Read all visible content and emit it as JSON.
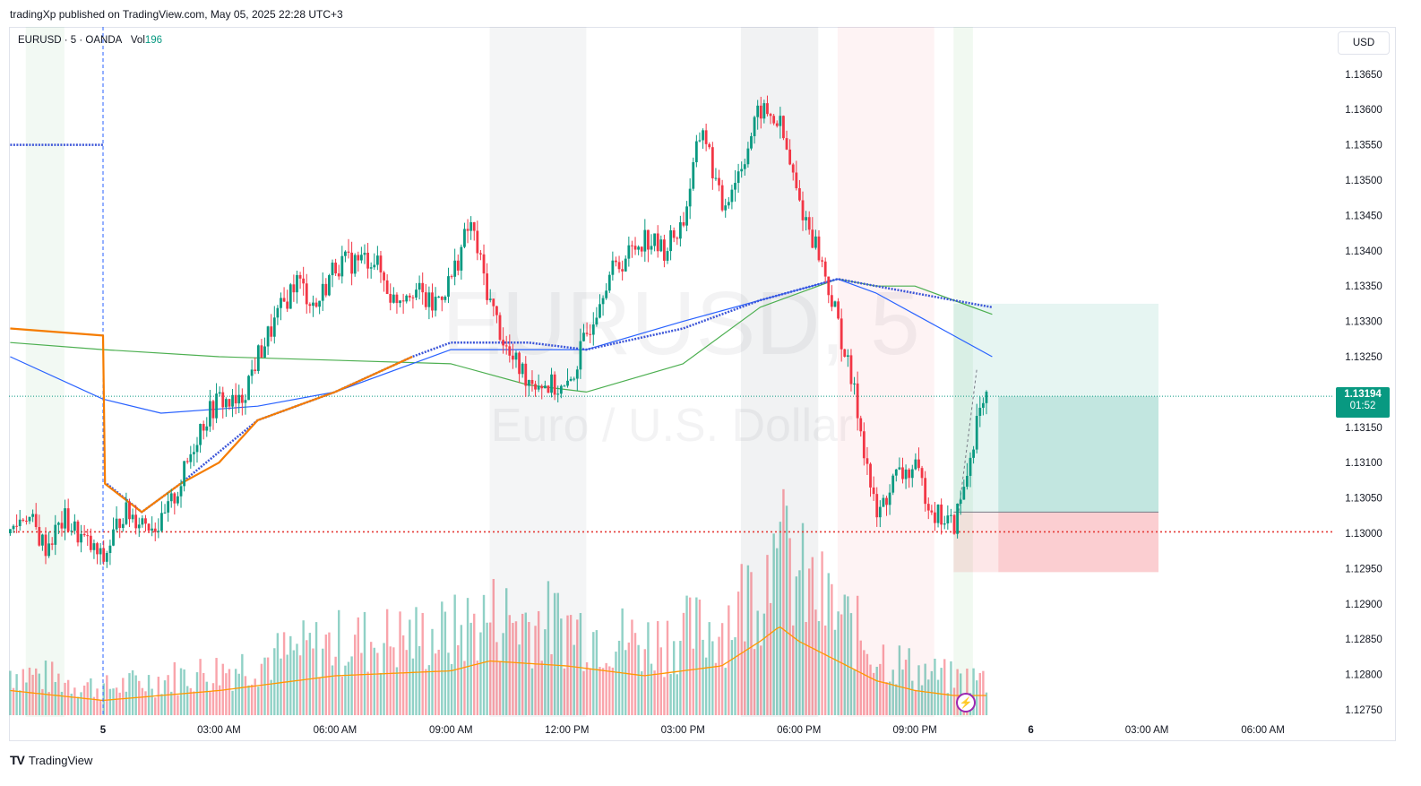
{
  "header": {
    "published": "tradingXp published on TradingView.com, May 05, 2025 22:28 UTC+3"
  },
  "legend": {
    "symbol": "EURUSD · 5 · OANDA",
    "vol_label": "Vol",
    "vol_value": "196"
  },
  "currency_button": "USD",
  "last_price": {
    "price": "1.13194",
    "countdown": "01:52"
  },
  "watermark": {
    "symbol": "EURUSD, 5",
    "description": "Euro / U.S. Dollar"
  },
  "brand": {
    "logo": "TV",
    "name": "TradingView"
  },
  "colors": {
    "up": "#089981",
    "down": "#f23645",
    "sma_long": "#4caf50",
    "sma_mid": "#2962ff",
    "sma_dotted": "#3c55d8",
    "vwap": "#f57c00",
    "volume_ma": "#ff9800",
    "last_price": "#089981",
    "level_line": "#e53935"
  },
  "chart_data": {
    "type": "candlestick",
    "symbol": "EURUSD",
    "timeframe": "5",
    "y_ticks": [
      "1.13650",
      "1.13600",
      "1.13550",
      "1.13500",
      "1.13450",
      "1.13400",
      "1.13350",
      "1.13300",
      "1.13250",
      "1.13150",
      "1.13100",
      "1.13050",
      "1.13000",
      "1.12950",
      "1.12900",
      "1.12850",
      "1.12800",
      "1.12750"
    ],
    "ylim": [
      1.1275,
      1.1365
    ],
    "x_ticks": [
      "5",
      "03:00 AM",
      "06:00 AM",
      "09:00 AM",
      "12:00 PM",
      "03:00 PM",
      "06:00 PM",
      "09:00 PM",
      "6",
      "03:00 AM",
      "06:00 AM"
    ],
    "x_tick_hours": [
      0,
      3,
      6,
      9,
      12,
      15,
      18,
      21,
      24,
      27,
      30
    ],
    "x_window_hours": [
      -2.4,
      33.8
    ],
    "price_anchors": [
      [
        -2.4,
        1.13
      ],
      [
        -2.0,
        1.1303
      ],
      [
        -1.5,
        1.1298
      ],
      [
        -1.0,
        1.1302
      ],
      [
        -0.5,
        1.1299
      ],
      [
        0.0,
        1.1296
      ],
      [
        0.5,
        1.1303
      ],
      [
        1.0,
        1.1302
      ],
      [
        1.5,
        1.1301
      ],
      [
        2.0,
        1.1307
      ],
      [
        2.5,
        1.1315
      ],
      [
        3.0,
        1.1319
      ],
      [
        3.5,
        1.1318
      ],
      [
        4.0,
        1.1325
      ],
      [
        5.0,
        1.1336
      ],
      [
        5.5,
        1.1332
      ],
      [
        6.0,
        1.1338
      ],
      [
        7.0,
        1.1339
      ],
      [
        7.5,
        1.1333
      ],
      [
        8.0,
        1.1335
      ],
      [
        8.5,
        1.1332
      ],
      [
        9.0,
        1.1336
      ],
      [
        9.5,
        1.1344
      ],
      [
        10.0,
        1.1333
      ],
      [
        10.5,
        1.1325
      ],
      [
        11.0,
        1.1322
      ],
      [
        12.0,
        1.132
      ],
      [
        12.5,
        1.1328
      ],
      [
        13.0,
        1.1336
      ],
      [
        14.0,
        1.1342
      ],
      [
        14.5,
        1.134
      ],
      [
        15.0,
        1.1344
      ],
      [
        15.5,
        1.1358
      ],
      [
        16.0,
        1.1346
      ],
      [
        16.5,
        1.1352
      ],
      [
        17.0,
        1.136
      ],
      [
        17.5,
        1.1358
      ],
      [
        18.0,
        1.1347
      ],
      [
        18.5,
        1.134
      ],
      [
        19.0,
        1.133
      ],
      [
        19.5,
        1.1318
      ],
      [
        20.0,
        1.1302
      ],
      [
        20.5,
        1.1308
      ],
      [
        21.0,
        1.1309
      ],
      [
        21.5,
        1.1303
      ],
      [
        22.0,
        1.1301
      ],
      [
        22.3,
        1.1307
      ],
      [
        22.6,
        1.1316
      ],
      [
        22.9,
        1.1319
      ]
    ],
    "last_price": 1.13194,
    "horizontal_levels": [
      {
        "price": 1.13002,
        "style": "dotted",
        "color": "#e53935"
      },
      {
        "price": 1.13194,
        "style": "dotted",
        "color": "#089981"
      }
    ],
    "vertical_markers": [
      {
        "hour": 0,
        "style": "dashed",
        "color": "#2962ff"
      }
    ],
    "session_highlights": [
      {
        "from": -2.0,
        "to": -1.0,
        "color": "rgba(76,175,80,0.07)"
      },
      {
        "from": 10.0,
        "to": 12.5,
        "color": "rgba(120,123,134,0.08)"
      },
      {
        "from": 16.5,
        "to": 18.5,
        "color": "rgba(120,123,134,0.10)"
      },
      {
        "from": 19.0,
        "to": 21.5,
        "color": "rgba(242,54,69,0.06)"
      },
      {
        "from": 22.0,
        "to": 22.5,
        "color": "rgba(76,175,80,0.08)"
      }
    ],
    "moving_averages": [
      {
        "color": "#4caf50",
        "points": [
          [
            -2.4,
            1.1327
          ],
          [
            0,
            1.1326
          ],
          [
            3,
            1.1325
          ],
          [
            9,
            1.1324
          ],
          [
            11,
            1.1321
          ],
          [
            12.5,
            1.132
          ],
          [
            15,
            1.1324
          ],
          [
            17,
            1.1332
          ],
          [
            19,
            1.1336
          ],
          [
            20,
            1.1335
          ],
          [
            21,
            1.1335
          ],
          [
            22,
            1.1333
          ],
          [
            23,
            1.1331
          ]
        ]
      },
      {
        "color": "#2962ff",
        "points": [
          [
            -2.4,
            1.1325
          ],
          [
            0,
            1.1319
          ],
          [
            1.5,
            1.1317
          ],
          [
            4,
            1.1318
          ],
          [
            6,
            1.132
          ],
          [
            9,
            1.1326
          ],
          [
            10,
            1.1326
          ],
          [
            12.5,
            1.1326
          ],
          [
            15,
            1.133
          ],
          [
            17,
            1.1333
          ],
          [
            19,
            1.1336
          ],
          [
            20,
            1.1334
          ],
          [
            21,
            1.1331
          ],
          [
            22,
            1.1328
          ],
          [
            23,
            1.1325
          ]
        ]
      },
      {
        "color": "#3c55d8",
        "dotted": true,
        "points": [
          [
            -2.4,
            1.1355
          ],
          [
            0,
            1.1355
          ]
        ]
      },
      {
        "color": "#3c55d8",
        "dotted": true,
        "points": [
          [
            0.1,
            1.1307
          ],
          [
            1.0,
            1.1303
          ],
          [
            2.0,
            1.1307
          ],
          [
            4.0,
            1.1316
          ],
          [
            6.0,
            1.132
          ],
          [
            8.0,
            1.1325
          ],
          [
            9.0,
            1.1327
          ],
          [
            11.0,
            1.1327
          ],
          [
            12.5,
            1.1326
          ],
          [
            15.0,
            1.1329
          ],
          [
            17.0,
            1.1333
          ],
          [
            19.0,
            1.1336
          ],
          [
            20.0,
            1.1335
          ],
          [
            21.0,
            1.1334
          ],
          [
            22.0,
            1.1333
          ],
          [
            23.0,
            1.1332
          ]
        ]
      },
      {
        "color": "#f57c00",
        "points": [
          [
            -2.4,
            1.1329
          ],
          [
            0,
            1.1328
          ],
          [
            0.05,
            1.1307
          ],
          [
            1.0,
            1.1303
          ],
          [
            2.0,
            1.1307
          ],
          [
            3.0,
            1.131
          ],
          [
            4.0,
            1.1316
          ],
          [
            6.0,
            1.132
          ],
          [
            8.0,
            1.1325
          ]
        ]
      }
    ],
    "position_tool": {
      "from_hour": 22.0,
      "to_hour": 27.3,
      "entry": 1.1303,
      "target": 1.13325,
      "stop": 1.12945,
      "current": 1.13194
    },
    "volume": {
      "ma_color": "#ff9800",
      "profile": [
        [
          -2.4,
          0.25
        ],
        [
          0,
          0.15
        ],
        [
          3,
          0.25
        ],
        [
          6,
          0.4
        ],
        [
          9,
          0.45
        ],
        [
          10,
          0.55
        ],
        [
          12,
          0.5
        ],
        [
          14,
          0.4
        ],
        [
          16,
          0.5
        ],
        [
          17,
          0.75
        ],
        [
          17.5,
          0.9
        ],
        [
          18,
          0.75
        ],
        [
          19,
          0.55
        ],
        [
          20,
          0.35
        ],
        [
          21,
          0.25
        ],
        [
          22,
          0.2
        ],
        [
          22.9,
          0.2
        ]
      ]
    }
  }
}
